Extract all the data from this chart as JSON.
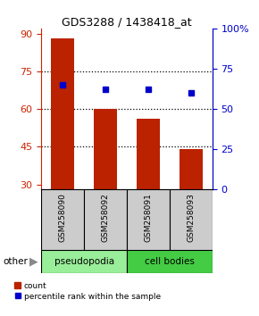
{
  "title": "GDS3288 / 1438418_at",
  "samples": [
    "GSM258090",
    "GSM258092",
    "GSM258091",
    "GSM258093"
  ],
  "bar_values": [
    88,
    60,
    56,
    44
  ],
  "percentile_values": [
    65,
    62,
    62,
    60
  ],
  "bar_color": "#bb2200",
  "percentile_color": "#0000cc",
  "ylim_left": [
    28,
    92
  ],
  "yticks_left": [
    30,
    45,
    60,
    75,
    90
  ],
  "ylim_right": [
    0,
    100
  ],
  "yticks_right": [
    0,
    25,
    50,
    75,
    100
  ],
  "ytick_labels_right": [
    "0",
    "25",
    "50",
    "75",
    "100%"
  ],
  "groups": [
    {
      "label": "pseudopodia",
      "color": "#99ee99"
    },
    {
      "label": "cell bodies",
      "color": "#44cc44"
    }
  ],
  "other_label": "other",
  "legend_count_label": "count",
  "legend_pct_label": "percentile rank within the sample",
  "x_positions": [
    1,
    2,
    3,
    4
  ],
  "bar_width": 0.55,
  "left_tick_color": "#cc2200",
  "right_tick_color": "#0000cc",
  "sample_label_bg": "#cccccc",
  "cell_border_color": "#000000"
}
